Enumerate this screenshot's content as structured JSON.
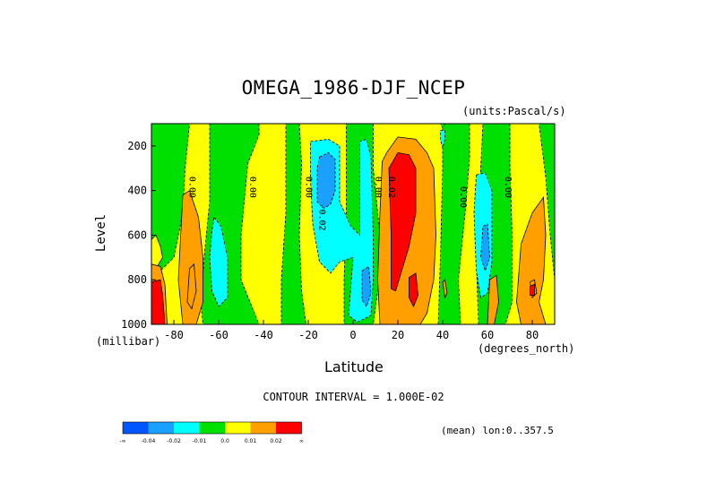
{
  "chart_data": {
    "type": "heatmap",
    "title": "OMEGA_1986-DJF_NCEP",
    "units": "(units:Pascal/s)",
    "xlabel": "Latitude",
    "x_units": "(degrees_north)",
    "ylabel": "Level",
    "y_units": "(millibar)",
    "xlim": [
      -90,
      90
    ],
    "ylim": [
      1000,
      100
    ],
    "x_ticks": [
      "-80",
      "-60",
      "-40",
      "-20",
      "0",
      "20",
      "40",
      "60",
      "80"
    ],
    "x_tick_values": [
      -80,
      -60,
      -40,
      -20,
      0,
      20,
      40,
      60,
      80
    ],
    "y_ticks": [
      "200",
      "400",
      "600",
      "800",
      "1000"
    ],
    "y_tick_values": [
      200,
      400,
      600,
      800,
      1000
    ],
    "contour_interval_text": "CONTOUR INTERVAL = 1.000E-02",
    "mean_text": "(mean) lon:0..357.5",
    "colorbar": {
      "colors": [
        "#0055ff",
        "#1aa0ff",
        "#00ffff",
        "#00e000",
        "#ffff00",
        "#ffa000",
        "#ff0000"
      ],
      "labels": [
        "-∞",
        "-0.04",
        "-0.02",
        "-0.01",
        "0.0",
        "0.01",
        "0.02",
        "∞"
      ]
    },
    "contour_labels": [
      {
        "text": "0.00",
        "lat": -73,
        "p": 385
      },
      {
        "text": "0.00",
        "lat": -46,
        "p": 385
      },
      {
        "text": "0.00",
        "lat": -21,
        "p": 385
      },
      {
        "text": "-0.02",
        "lat": -15,
        "p": 520
      },
      {
        "text": "0.00",
        "lat": 10,
        "p": 385
      },
      {
        "text": "0.02",
        "lat": 16,
        "p": 385
      },
      {
        "text": "0.00",
        "lat": 48,
        "p": 430
      },
      {
        "text": "0.00",
        "lat": 68,
        "p": 385
      }
    ],
    "regions": [
      {
        "level": 4,
        "pts": [
          [
            -90,
            100
          ],
          [
            90,
            100
          ],
          [
            90,
            1000
          ],
          [
            -90,
            1000
          ]
        ]
      },
      {
        "level": 3,
        "pts": [
          [
            -90,
            100
          ],
          [
            -73,
            100
          ],
          [
            -75,
            300
          ],
          [
            -76,
            500
          ],
          [
            -80,
            700
          ],
          [
            -88,
            780
          ],
          [
            -90,
            800
          ]
        ]
      },
      {
        "level": 4,
        "pts": [
          [
            -90,
            620
          ],
          [
            -88,
            600
          ],
          [
            -86,
            650
          ],
          [
            -85,
            700
          ],
          [
            -88,
            750
          ],
          [
            -90,
            760
          ]
        ]
      },
      {
        "level": 3,
        "pts": [
          [
            -64,
            100
          ],
          [
            -42,
            100
          ],
          [
            -42,
            150
          ],
          [
            -47,
            280
          ],
          [
            -50,
            600
          ],
          [
            -50,
            800
          ],
          [
            -46,
            900
          ],
          [
            -42,
            1000
          ],
          [
            -67,
            1000
          ],
          [
            -68,
            900
          ],
          [
            -66,
            650
          ],
          [
            -64,
            450
          ],
          [
            -64,
            200
          ]
        ]
      },
      {
        "level": 2,
        "pts": [
          [
            -62,
            520
          ],
          [
            -59,
            560
          ],
          [
            -56,
            700
          ],
          [
            -56,
            880
          ],
          [
            -60,
            920
          ],
          [
            -63,
            850
          ],
          [
            -64,
            700
          ],
          [
            -63,
            580
          ]
        ]
      },
      {
        "level": 3,
        "pts": [
          [
            -30,
            100
          ],
          [
            -24,
            100
          ],
          [
            -23,
            280
          ],
          [
            -24,
            600
          ],
          [
            -23,
            850
          ],
          [
            -21,
            1000
          ],
          [
            -32,
            1000
          ],
          [
            -32,
            800
          ],
          [
            -30,
            500
          ],
          [
            -30,
            250
          ]
        ]
      },
      {
        "level": 3,
        "pts": [
          [
            -3,
            100
          ],
          [
            9,
            100
          ],
          [
            9,
            300
          ],
          [
            12,
            600
          ],
          [
            11,
            850
          ],
          [
            9,
            1000
          ],
          [
            -4,
            1000
          ],
          [
            -4,
            800
          ],
          [
            -3,
            500
          ]
        ]
      },
      {
        "level": 2,
        "pts": [
          [
            -19,
            180
          ],
          [
            -11,
            170
          ],
          [
            -6,
            200
          ],
          [
            -6,
            450
          ],
          [
            -1,
            560
          ],
          [
            3,
            600
          ],
          [
            3,
            180
          ],
          [
            6,
            170
          ],
          [
            8,
            250
          ],
          [
            9,
            600
          ],
          [
            9,
            800
          ],
          [
            8,
            960
          ],
          [
            2,
            990
          ],
          [
            -2,
            960
          ],
          [
            0,
            700
          ],
          [
            -6,
            720
          ],
          [
            -10,
            770
          ],
          [
            -15,
            720
          ],
          [
            -18,
            550
          ],
          [
            -19,
            350
          ]
        ]
      },
      {
        "level": 1,
        "pts": [
          [
            -15,
            250
          ],
          [
            -11,
            230
          ],
          [
            -8,
            260
          ],
          [
            -8,
            400
          ],
          [
            -10,
            460
          ],
          [
            -13,
            480
          ],
          [
            -16,
            450
          ],
          [
            -16,
            300
          ]
        ]
      },
      {
        "level": 1,
        "pts": [
          [
            4,
            760
          ],
          [
            7,
            740
          ],
          [
            8,
            860
          ],
          [
            6,
            920
          ],
          [
            4,
            890
          ]
        ]
      },
      {
        "level": 3,
        "pts": [
          [
            40,
            100
          ],
          [
            52,
            100
          ],
          [
            52,
            250
          ],
          [
            50,
            500
          ],
          [
            47,
            800
          ],
          [
            48,
            1000
          ],
          [
            38,
            1000
          ],
          [
            39,
            700
          ],
          [
            40,
            300
          ]
        ]
      },
      {
        "level": 3,
        "pts": [
          [
            58,
            100
          ],
          [
            70,
            100
          ],
          [
            70,
            300
          ],
          [
            71,
            600
          ],
          [
            71,
            900
          ],
          [
            68,
            1000
          ],
          [
            56,
            1000
          ],
          [
            55,
            700
          ],
          [
            57,
            300
          ]
        ]
      },
      {
        "level": 2,
        "pts": [
          [
            55,
            330
          ],
          [
            59,
            320
          ],
          [
            62,
            400
          ],
          [
            62,
            720
          ],
          [
            60,
            860
          ],
          [
            57,
            880
          ],
          [
            55,
            760
          ],
          [
            54,
            500
          ]
        ]
      },
      {
        "level": 1,
        "pts": [
          [
            58,
            560
          ],
          [
            60,
            550
          ],
          [
            61,
            700
          ],
          [
            59,
            760
          ],
          [
            57,
            700
          ]
        ]
      },
      {
        "level": 3,
        "pts": [
          [
            90,
            100
          ],
          [
            83,
            100
          ],
          [
            84,
            180
          ],
          [
            86,
            340
          ],
          [
            88,
            600
          ],
          [
            90,
            800
          ]
        ]
      },
      {
        "level": 5,
        "pts": [
          [
            -76,
            420
          ],
          [
            -73,
            400
          ],
          [
            -69,
            520
          ],
          [
            -67,
            700
          ],
          [
            -67,
            900
          ],
          [
            -70,
            1000
          ],
          [
            -76,
            1000
          ],
          [
            -78,
            800
          ]
        ]
      },
      {
        "level": 5,
        "pts": [
          [
            13,
            270
          ],
          [
            15,
            230
          ],
          [
            20,
            160
          ],
          [
            28,
            170
          ],
          [
            33,
            230
          ],
          [
            36,
            300
          ],
          [
            37,
            600
          ],
          [
            36,
            800
          ],
          [
            33,
            950
          ],
          [
            30,
            1000
          ],
          [
            12,
            1000
          ],
          [
            11,
            800
          ],
          [
            12,
            500
          ]
        ]
      },
      {
        "level": 6,
        "pts": [
          [
            16,
            300
          ],
          [
            20,
            230
          ],
          [
            25,
            240
          ],
          [
            28,
            300
          ],
          [
            28,
            500
          ],
          [
            25,
            650
          ],
          [
            22,
            750
          ],
          [
            19,
            850
          ],
          [
            17,
            840
          ],
          [
            17,
            600
          ]
        ]
      },
      {
        "level": 6,
        "pts": [
          [
            25,
            790
          ],
          [
            28,
            770
          ],
          [
            29,
            870
          ],
          [
            27,
            920
          ],
          [
            25,
            880
          ]
        ]
      },
      {
        "level": 5,
        "pts": [
          [
            75,
            640
          ],
          [
            80,
            500
          ],
          [
            85,
            430
          ],
          [
            86,
            600
          ],
          [
            85,
            800
          ],
          [
            83,
            900
          ],
          [
            86,
            1000
          ],
          [
            75,
            1000
          ],
          [
            73,
            900
          ]
        ]
      },
      {
        "level": 5,
        "pts": [
          [
            61,
            800
          ],
          [
            64,
            780
          ],
          [
            65,
            900
          ],
          [
            63,
            1000
          ],
          [
            60,
            1000
          ]
        ]
      },
      {
        "level": 5,
        "pts": [
          [
            -73,
            750
          ],
          [
            -71,
            730
          ],
          [
            -70,
            850
          ],
          [
            -72,
            930
          ],
          [
            -74,
            900
          ]
        ]
      },
      {
        "level": 5,
        "pts": [
          [
            -90,
            730
          ],
          [
            -86,
            740
          ],
          [
            -84,
            820
          ],
          [
            -83,
            1000
          ],
          [
            -90,
            1000
          ]
        ]
      },
      {
        "level": 6,
        "pts": [
          [
            -90,
            810
          ],
          [
            -86,
            800
          ],
          [
            -85,
            870
          ],
          [
            -84,
            1000
          ],
          [
            -90,
            1000
          ]
        ]
      },
      {
        "level": 5,
        "pts": [
          [
            40,
            810
          ],
          [
            41,
            800
          ],
          [
            42,
            860
          ],
          [
            41,
            880
          ]
        ]
      },
      {
        "level": 5,
        "pts": [
          [
            79,
            810
          ],
          [
            81,
            800
          ],
          [
            82,
            860
          ],
          [
            80,
            880
          ]
        ]
      },
      {
        "level": 6,
        "pts": [
          [
            79,
            830
          ],
          [
            81,
            820
          ],
          [
            81,
            870
          ],
          [
            79,
            870
          ]
        ]
      },
      {
        "level": 2,
        "pts": [
          [
            39,
            130
          ],
          [
            41,
            130
          ],
          [
            41,
            170
          ],
          [
            40,
            210
          ],
          [
            39,
            170
          ]
        ]
      },
      {
        "level": 3,
        "pts": [
          [
            39,
            100
          ],
          [
            41,
            100
          ],
          [
            40,
            120
          ]
        ]
      }
    ]
  }
}
